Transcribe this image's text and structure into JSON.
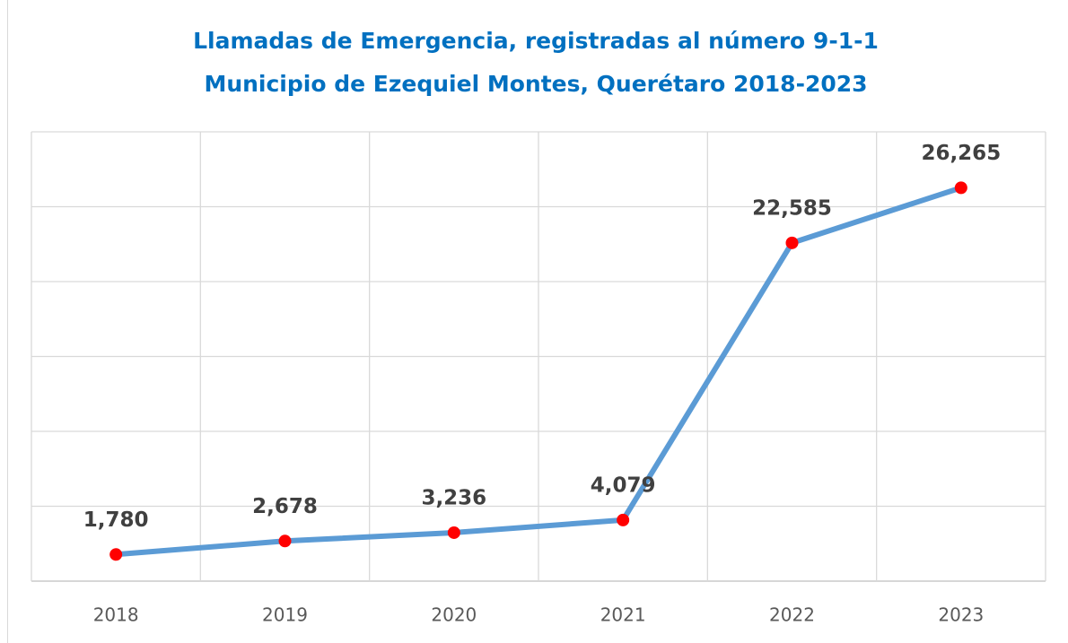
{
  "chart_data": {
    "type": "line",
    "title": "Llamadas de Emergencia, registradas al número 9-1-1",
    "subtitle": "Municipio de Ezequiel Montes, Querétaro 2018-2023",
    "categories": [
      "2018",
      "2019",
      "2020",
      "2021",
      "2022",
      "2023"
    ],
    "series": [
      {
        "name": "Llamadas",
        "color": "#5b9bd5",
        "marker_color": "#ff0000",
        "values": [
          1780,
          2678,
          3236,
          4079,
          22585,
          26265
        ],
        "value_labels": [
          "1,780",
          "2,678",
          "3,236",
          "4,079",
          "22,585",
          "26,265"
        ]
      }
    ],
    "ylim": [
      0,
      30000
    ],
    "yticks": [
      0,
      5000,
      10000,
      15000,
      20000,
      25000,
      30000
    ],
    "grid": true
  }
}
